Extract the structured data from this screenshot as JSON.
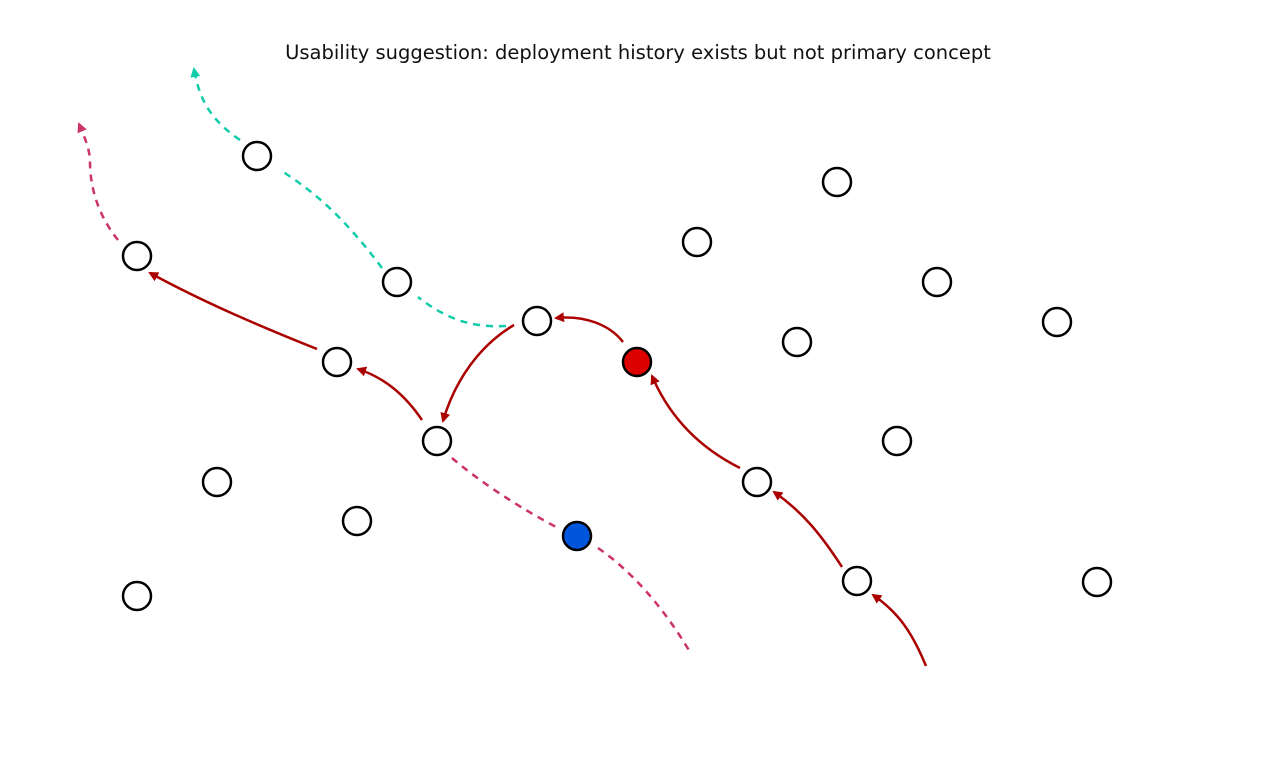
{
  "title": "Usability suggestion: deployment history exists but not primary concept",
  "colors": {
    "node_fill": "#ffffff",
    "node_stroke": "#000000",
    "highlight_red": "#dd0000",
    "highlight_blue": "#0055dd",
    "edge_solid": "#aa0000",
    "edge_dashed_pink": "#cc3366",
    "edge_dashed_teal": "#11ccaa"
  },
  "nodes": [
    {
      "id": "n1",
      "state": "plain"
    },
    {
      "id": "n2",
      "state": "plain"
    },
    {
      "id": "n3",
      "state": "plain"
    },
    {
      "id": "n4",
      "state": "plain"
    },
    {
      "id": "n5",
      "state": "plain"
    },
    {
      "id": "n6",
      "state": "plain"
    },
    {
      "id": "n7",
      "state": "current-red"
    },
    {
      "id": "n8",
      "state": "plain"
    },
    {
      "id": "n9",
      "state": "plain"
    },
    {
      "id": "n10",
      "state": "plain"
    },
    {
      "id": "n11",
      "state": "current-blue"
    },
    {
      "id": "n12",
      "state": "plain"
    },
    {
      "id": "n13",
      "state": "plain"
    },
    {
      "id": "n14",
      "state": "plain"
    },
    {
      "id": "n15",
      "state": "plain"
    },
    {
      "id": "n16",
      "state": "plain"
    },
    {
      "id": "n17",
      "state": "plain"
    },
    {
      "id": "n18",
      "state": "plain"
    },
    {
      "id": "n19",
      "state": "plain"
    },
    {
      "id": "n20",
      "state": "plain"
    }
  ],
  "edges": [
    {
      "from": "n7",
      "to": "n5",
      "style": "solid"
    },
    {
      "from": "n5",
      "to": "n10",
      "style": "solid"
    },
    {
      "from": "n10",
      "to": "n8",
      "style": "solid"
    },
    {
      "from": "n8",
      "to": "n3",
      "style": "solid"
    },
    {
      "from": "n15",
      "to": "n7",
      "style": "solid"
    },
    {
      "from": "n18",
      "to": "n15",
      "style": "solid"
    },
    {
      "from": "start",
      "to": "n18",
      "style": "solid"
    },
    {
      "from": "n5",
      "to": "n2",
      "style": "dashed-teal"
    },
    {
      "from": "n2",
      "to": "n1",
      "style": "dashed-teal"
    },
    {
      "from": "n1",
      "to": "exit",
      "style": "dashed-teal"
    },
    {
      "from": "n3",
      "to": "exit",
      "style": "dashed-pink"
    },
    {
      "from": "n10",
      "to": "n11",
      "style": "dashed-pink"
    },
    {
      "from": "n11",
      "to": "exit",
      "style": "dashed-pink"
    }
  ]
}
